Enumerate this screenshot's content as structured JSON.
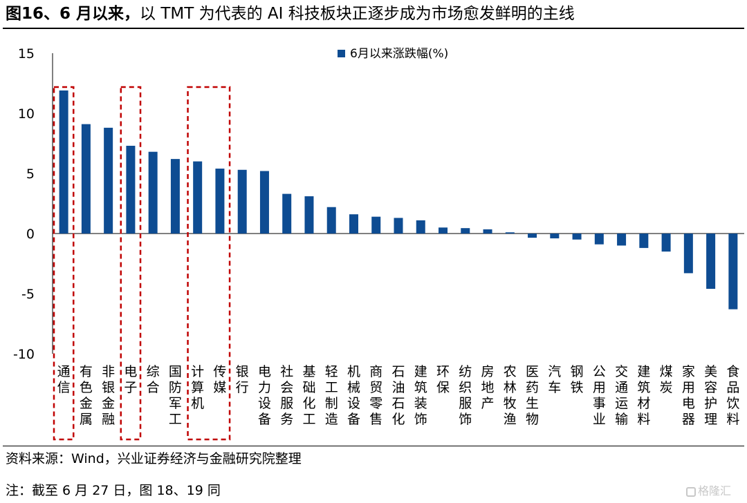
{
  "title": {
    "bold": "图16、6 月以来，",
    "regular": "以 TMT 为代表的 AI 科技板块正逐步成为市场愈发鲜明的主线"
  },
  "chart_data": {
    "type": "bar",
    "title": "",
    "xlabel": "",
    "ylabel": "",
    "ylim": [
      -10,
      15
    ],
    "yticks": [
      15,
      10,
      5,
      0,
      -5,
      -10
    ],
    "grid": false,
    "legend_position": "top-center",
    "bar_color": "#0e4c92",
    "highlight_color": "#c00000",
    "categories": [
      "通信",
      "有色金属",
      "非银金融",
      "电子",
      "综合",
      "国防军工",
      "计算机",
      "传媒",
      "银行",
      "电力设备",
      "社会服务",
      "基础化工",
      "轻工制造",
      "机械设备",
      "商贸零售",
      "石油石化",
      "建筑装饰",
      "环保",
      "纺织服饰",
      "房地产",
      "农林牧渔",
      "医药生物",
      "汽车",
      "钢铁",
      "公用事业",
      "交通运输",
      "建筑材料",
      "煤炭",
      "家用电器",
      "美容护理",
      "食品饮料"
    ],
    "series": [
      {
        "name": "6月以来涨跌幅(%)",
        "values": [
          11.9,
          9.1,
          8.8,
          7.3,
          6.8,
          6.2,
          6.0,
          5.4,
          5.3,
          5.2,
          3.3,
          3.1,
          2.2,
          1.6,
          1.4,
          1.3,
          1.1,
          0.5,
          0.45,
          0.35,
          0.1,
          -0.35,
          -0.4,
          -0.5,
          -0.9,
          -1.0,
          -1.2,
          -1.5,
          -3.3,
          -4.6,
          -6.3
        ]
      }
    ],
    "highlight_groups": [
      [
        0,
        0
      ],
      [
        3,
        3
      ],
      [
        6,
        7
      ]
    ]
  },
  "source": "资料来源：Wind，兴业证券经济与金融研究院整理",
  "note": "注：截至 6 月 27 日，图 18、19 同",
  "watermark": "格隆汇"
}
